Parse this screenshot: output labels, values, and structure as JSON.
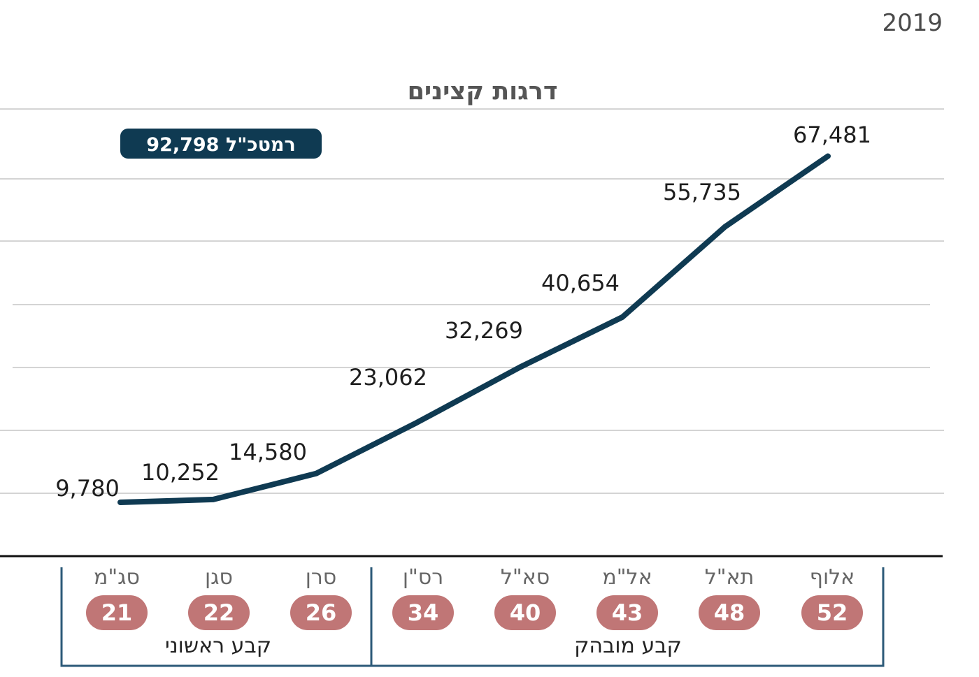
{
  "chart_data": {
    "type": "line",
    "title": "דרגות קצינים",
    "year": "2019",
    "categories": [
      "סג\"מ",
      "סגן",
      "סרן",
      "רס\"ן",
      "סא\"ל",
      "אל\"מ",
      "תא\"ל",
      "אלוף"
    ],
    "ages": [
      "21",
      "22",
      "26",
      "34",
      "40",
      "43",
      "48",
      "52"
    ],
    "values": [
      9780,
      10252,
      14580,
      23062,
      32269,
      40654,
      55735,
      67481
    ],
    "value_labels": [
      "9,780",
      "10,252",
      "14,580",
      "23,062",
      "32,269",
      "40,654",
      "55,735",
      "67,481"
    ],
    "callout": "רמטכ\"ל 92,798",
    "groups": [
      {
        "label": "קבע ראשוני",
        "members": [
          "סג\"מ",
          "סגן",
          "סרן"
        ]
      },
      {
        "label": "קבע מובהק",
        "members": [
          "רס\"ן",
          "סא\"ל",
          "אל\"מ",
          "תא\"ל",
          "אלוף"
        ]
      }
    ],
    "grid": true,
    "colors": {
      "line": "#0f3a52",
      "badge": "#0f3a52",
      "age_pill": "#c07676"
    }
  }
}
